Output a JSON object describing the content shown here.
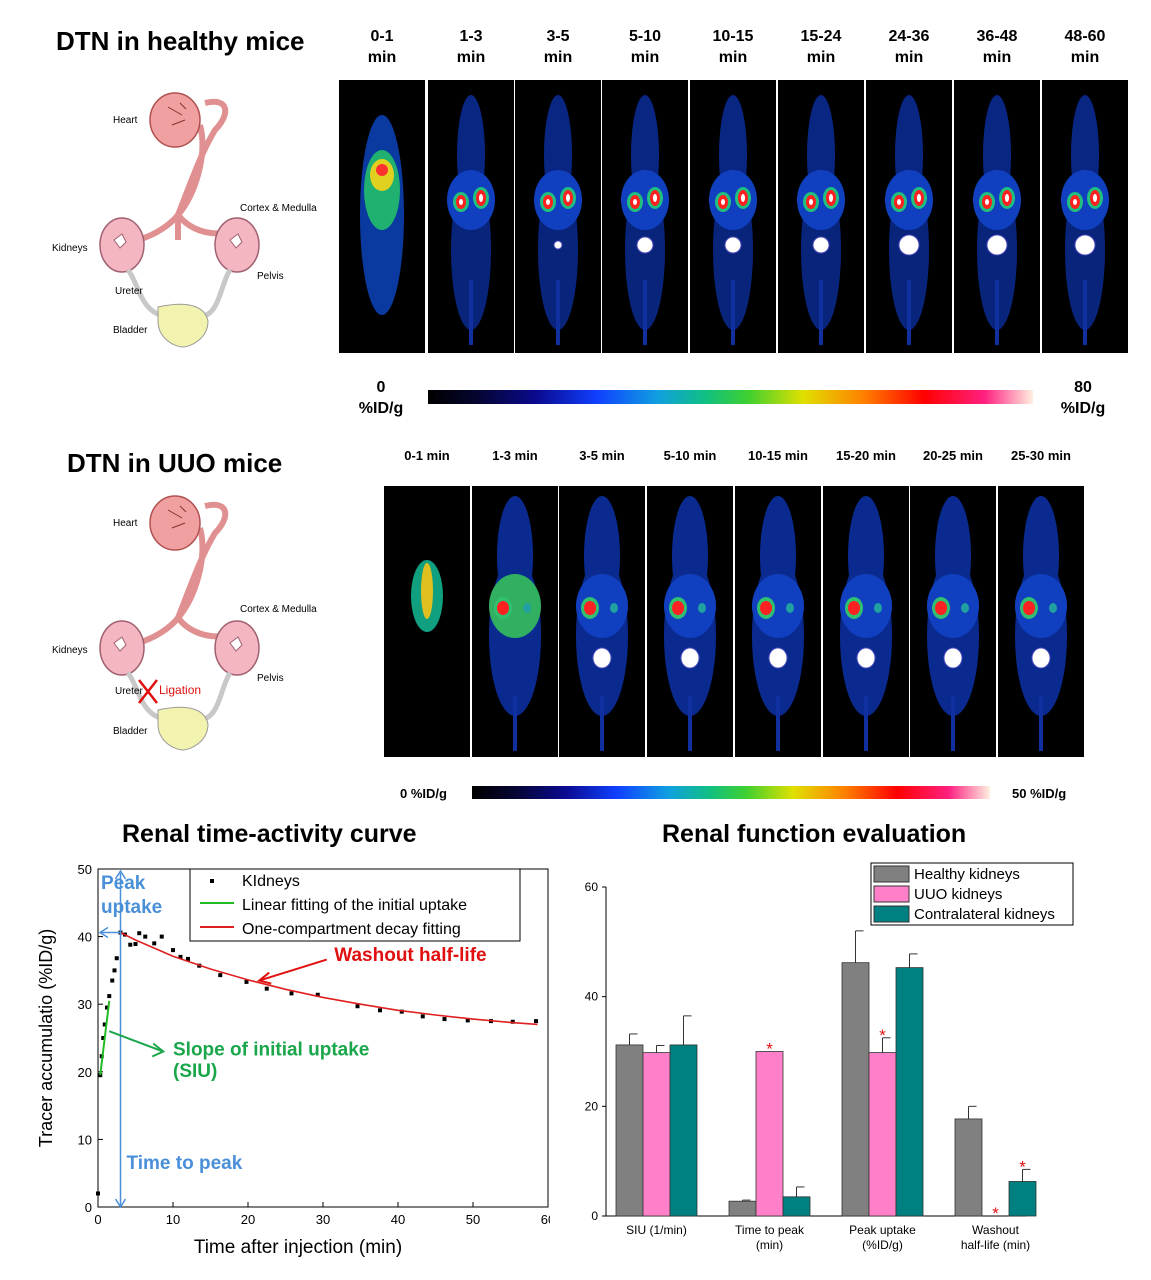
{
  "healthy": {
    "title": "DTN in healthy mice",
    "frames": [
      {
        "t": "0-1",
        "u": "min"
      },
      {
        "t": "1-3",
        "u": "min"
      },
      {
        "t": "3-5",
        "u": "min"
      },
      {
        "t": "5-10",
        "u": "min"
      },
      {
        "t": "10-15",
        "u": "min"
      },
      {
        "t": "15-24",
        "u": "min"
      },
      {
        "t": "24-36",
        "u": "min"
      },
      {
        "t": "36-48",
        "u": "min"
      },
      {
        "t": "48-60",
        "u": "min"
      }
    ],
    "colorbar": {
      "min_value": "0",
      "min_unit": "%ID/g",
      "max_value": "80",
      "max_unit": "%ID/g"
    }
  },
  "uuo": {
    "title": "DTN in UUO mice",
    "frames": [
      "0-1 min",
      "1-3 min",
      "3-5 min",
      "5-10 min",
      "10-15 min",
      "15-20 min",
      "20-25 min",
      "25-30 min"
    ],
    "colorbar": {
      "min_label": "0 %ID/g",
      "max_label": "50 %ID/g"
    }
  },
  "anatomy": {
    "heart": "Heart",
    "cortex": "Cortex & Medulla",
    "kidneys": "Kidneys",
    "pelvis": "Pelvis",
    "ureter": "Ureter",
    "bladder": "Bladder",
    "ligation": "Ligation"
  },
  "curve": {
    "title": "Renal time-activity curve",
    "xlabel": "Time after injection (min)",
    "ylabel": "Tracer accumulatio (%ID/g)",
    "legend": [
      "KIdneys",
      "Linear fitting of the initial uptake",
      "One-compartment decay fitting"
    ],
    "annotations": {
      "peak": [
        "Peak",
        "uptake"
      ],
      "washout": "Washout half-life",
      "siu": [
        "Slope of initial uptake",
        "(SIU)"
      ],
      "ttp": "Time to peak"
    },
    "colors": {
      "linear": "#22bb22",
      "decay": "#e02020",
      "peak": "#4a90d9",
      "washout": "#e01010",
      "siu": "#1aa64a"
    }
  },
  "bars": {
    "title": "Renal function evaluation",
    "legend": [
      "Healthy kidneys",
      "UUO kidneys",
      "Contralateral kidneys"
    ],
    "colors": [
      "#808080",
      "#ff80c8",
      "#008080"
    ],
    "star": "*"
  },
  "chart_data": [
    {
      "type": "scatter",
      "title": "Renal time-activity curve",
      "xlabel": "Time after injection (min)",
      "ylabel": "Tracer accumulatio (%ID/g)",
      "xlim": [
        0,
        60
      ],
      "ylim": [
        0,
        50
      ],
      "xticks": [
        "0",
        "10",
        "20",
        "30",
        "40",
        "50",
        "60"
      ],
      "yticks": [
        "0",
        "10",
        "20",
        "30",
        "40",
        "50"
      ],
      "series": [
        {
          "name": "KIdneys",
          "points": [
            [
              0,
              2
            ],
            [
              0.3,
              19.5
            ],
            [
              0.5,
              22.3
            ],
            [
              0.7,
              25
            ],
            [
              0.9,
              27
            ],
            [
              1.2,
              29.5
            ],
            [
              1.5,
              31.2
            ],
            [
              1.9,
              33.5
            ],
            [
              2.2,
              35
            ],
            [
              2.5,
              36.8
            ],
            [
              3,
              40.6
            ],
            [
              3.6,
              40.3
            ],
            [
              4.3,
              38.8
            ],
            [
              5,
              38.9
            ],
            [
              5.5,
              40.5
            ],
            [
              6.3,
              40
            ],
            [
              7.5,
              39
            ],
            [
              8.5,
              40
            ],
            [
              10,
              38
            ],
            [
              11,
              37
            ],
            [
              12,
              36.7
            ],
            [
              13.5,
              35.7
            ],
            [
              16.3,
              34.3
            ],
            [
              19.8,
              33.3
            ],
            [
              22.5,
              32.3
            ],
            [
              25.8,
              31.6
            ],
            [
              29.3,
              31.4
            ],
            [
              34.6,
              29.7
            ],
            [
              37.6,
              29.1
            ],
            [
              40.5,
              28.9
            ],
            [
              43.3,
              28.2
            ],
            [
              46.2,
              27.8
            ],
            [
              49.3,
              27.6
            ],
            [
              52.4,
              27.5
            ],
            [
              55.3,
              27.4
            ],
            [
              58.4,
              27.5
            ]
          ]
        },
        {
          "name": "Linear fitting of the initial uptake",
          "points": [
            [
              0.3,
              19.5
            ],
            [
              1.5,
              30.5
            ]
          ]
        },
        {
          "name": "One-compartment decay fitting",
          "points": [
            [
              3,
              40.6
            ],
            [
              5,
              39.5
            ],
            [
              10,
              37.1
            ],
            [
              15,
              35.2
            ],
            [
              20,
              33.6
            ],
            [
              25,
              32.2
            ],
            [
              30,
              31
            ],
            [
              35,
              30
            ],
            [
              40,
              29.1
            ],
            [
              45,
              28.4
            ],
            [
              50,
              27.8
            ],
            [
              55,
              27.3
            ],
            [
              58.6,
              27
            ]
          ]
        }
      ]
    },
    {
      "type": "bar",
      "title": "Renal function evaluation",
      "categories": [
        "SIU (1/min)",
        "Time to peak (min)",
        "Peak uptake (%ID/g)",
        "Washout half-life (min)"
      ],
      "ylim": [
        0,
        60
      ],
      "yticks": [
        "0",
        "20",
        "40",
        "60"
      ],
      "series": [
        {
          "name": "Healthy kidneys",
          "values": [
            31.2,
            2.7,
            46.2,
            17.7
          ],
          "errors": [
            2,
            0.2,
            5.8,
            2.3
          ]
        },
        {
          "name": "UUO kidneys",
          "values": [
            29.8,
            30,
            29.8,
            0
          ],
          "errors": [
            1.3,
            0,
            2.7,
            0
          ],
          "significant": [
            false,
            true,
            true,
            true
          ]
        },
        {
          "name": "Contralateral kidneys",
          "values": [
            31.2,
            3.5,
            45.3,
            6.3
          ],
          "errors": [
            5.3,
            1.8,
            2.5,
            2.2
          ],
          "significant": [
            false,
            false,
            false,
            true
          ]
        }
      ]
    }
  ]
}
